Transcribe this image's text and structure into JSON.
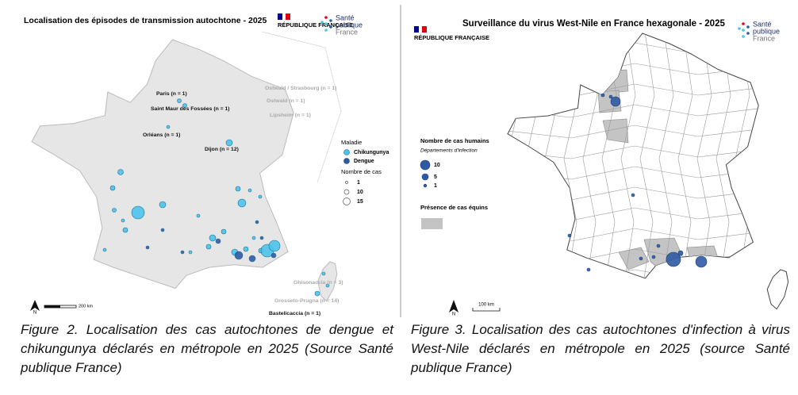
{
  "left_map": {
    "title": "Localisation des épisodes de transmission autochtone - 2025",
    "logo": {
      "republic": "RÉPUBLIQUE FRANÇAISE",
      "agency": [
        "Santé",
        "publique",
        "France"
      ]
    },
    "places": [
      "Paris (n = 1)",
      "Saint Maur des Fossées (n = 1)",
      "Orléans (n = 1)",
      "Dijon (n = 12)",
      "Ostwald / Strasbourg (n = 1)",
      "Ostwald (n = 1)",
      "Lipsheim (n = 1)",
      "Ghisonaccia (n = 3)",
      "Grosseto-Prugna (n = 14)",
      "Bastelicaccia (n = 1)"
    ],
    "legend": {
      "disease_title": "Maladie",
      "diseases": [
        "Chikungunya",
        "Dengue"
      ],
      "size_title": "Nombre de cas",
      "sizes": [
        "1",
        "10",
        "15"
      ]
    },
    "north": "N",
    "scale": "200 km",
    "caption": "Figure 2. Localisation des cas autochtones de dengue et chikungunya déclarés en métropole en 2025 (Source Santé publique France)"
  },
  "right_map": {
    "title": "Surveillance du virus West-Nile en France hexagonale - 2025",
    "logo": {
      "republic": "RÉPUBLIQUE FRANÇAISE",
      "agency": [
        "Santé",
        "publique",
        "France"
      ]
    },
    "legend": {
      "cases_title": "Nombre de cas humains",
      "cases_subtitle": "Départements d'infection",
      "sizes": [
        "10",
        "5",
        "1"
      ],
      "equine_title": "Présence de cas équins"
    },
    "north": "N",
    "scale": "100 km",
    "caption": "Figure 3. Localisation des cas autochtones d'infection à virus West-Nile déclarés en métropole en 2025 (source Santé publique France)"
  }
}
